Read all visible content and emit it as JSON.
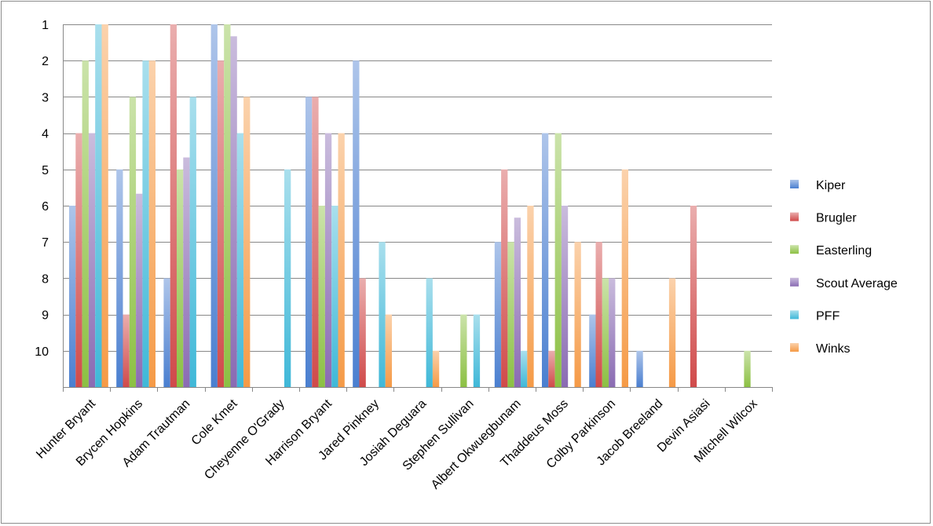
{
  "chart_data": {
    "type": "bar",
    "title": "",
    "xlabel": "",
    "ylabel": "",
    "y_axis": "reversed rank",
    "ylim": [
      1,
      11
    ],
    "yticks": [
      "1",
      "2",
      "3",
      "4",
      "5",
      "6",
      "7",
      "8",
      "9",
      "10"
    ],
    "grid": true,
    "legend_position": "right",
    "categories": [
      "Hunter Bryant",
      "Brycen Hopkins",
      "Adam Trautman",
      "Cole Kmet",
      "Cheyenne O'Grady",
      "Harrison Bryant",
      "Jared Pinkney",
      "Josiah Deguara",
      "Stephen Sullivan",
      "Albert Okwuegbunam",
      "Thaddeus Moss",
      "Colby Parkinson",
      "Jacob Breeland",
      "Devin Asiasi",
      "Mitchell Wilcox"
    ],
    "series": [
      {
        "name": "Kiper",
        "color": "#4a7fd0",
        "values": [
          6,
          5,
          8,
          1,
          null,
          3,
          2,
          null,
          null,
          7,
          4,
          9,
          10,
          null,
          null
        ]
      },
      {
        "name": "Brugler",
        "color": "#d04a4a",
        "values": [
          4,
          9,
          1,
          2,
          null,
          3,
          8,
          null,
          null,
          5,
          10,
          7,
          null,
          6,
          null
        ]
      },
      {
        "name": "Easterling",
        "color": "#8cc043",
        "values": [
          2,
          3,
          5,
          1,
          null,
          6,
          null,
          null,
          9,
          7,
          4,
          8,
          null,
          null,
          10
        ]
      },
      {
        "name": "Scout Average",
        "color": "#8a6bb3",
        "values": [
          4,
          5.67,
          4.67,
          1.33,
          null,
          4,
          null,
          null,
          null,
          6.33,
          6,
          8,
          null,
          null,
          null
        ]
      },
      {
        "name": "PFF",
        "color": "#3fb8d8",
        "values": [
          1,
          2,
          3,
          4,
          5,
          6,
          7,
          8,
          9,
          10,
          null,
          null,
          null,
          null,
          null
        ]
      },
      {
        "name": "Winks",
        "color": "#f59a46",
        "values": [
          1,
          2,
          null,
          3,
          null,
          4,
          9,
          10,
          null,
          6,
          7,
          5,
          8,
          null,
          null
        ]
      }
    ]
  }
}
